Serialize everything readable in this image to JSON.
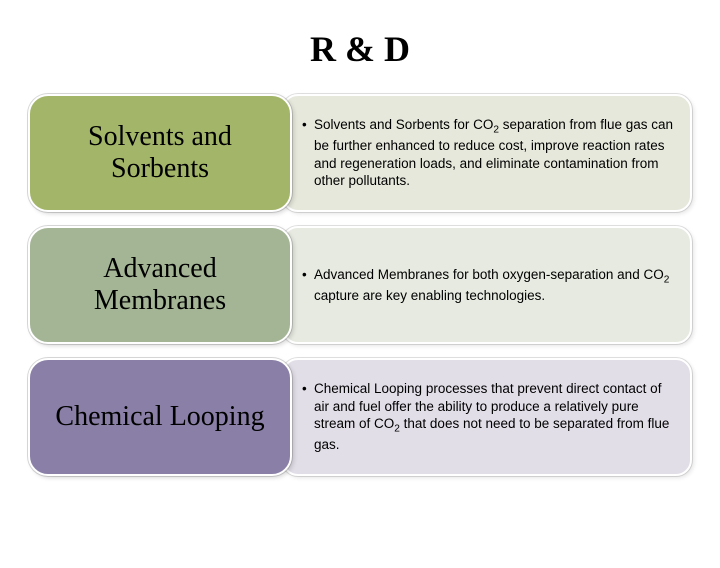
{
  "title": "R & D",
  "rows": [
    {
      "label": "Solvents and Sorbents",
      "pill_bg": "#a2b568",
      "desc_bg": "#e6e8dc",
      "bullet_html": "Solvents and Sorbents for CO<span class=\"sub\">2</span> separation from flue gas can be further enhanced to reduce cost, improve reaction rates and regeneration loads, and eliminate contamination from other pollutants."
    },
    {
      "label": "Advanced Membranes",
      "pill_bg": "#a3b595",
      "desc_bg": "#e6eae0",
      "bullet_html": "Advanced Membranes for both oxygen-separation and CO<span class=\"sub\">2</span> capture are key enabling technologies."
    },
    {
      "label": "Chemical Looping",
      "pill_bg": "#8a7fa7",
      "desc_bg": "#e2dee8",
      "bullet_html": "Chemical Looping processes that prevent direct contact of air and fuel offer the ability to produce a relatively pure stream of CO<span class=\"sub\">2</span> that does not need to be separated from flue gas."
    }
  ]
}
